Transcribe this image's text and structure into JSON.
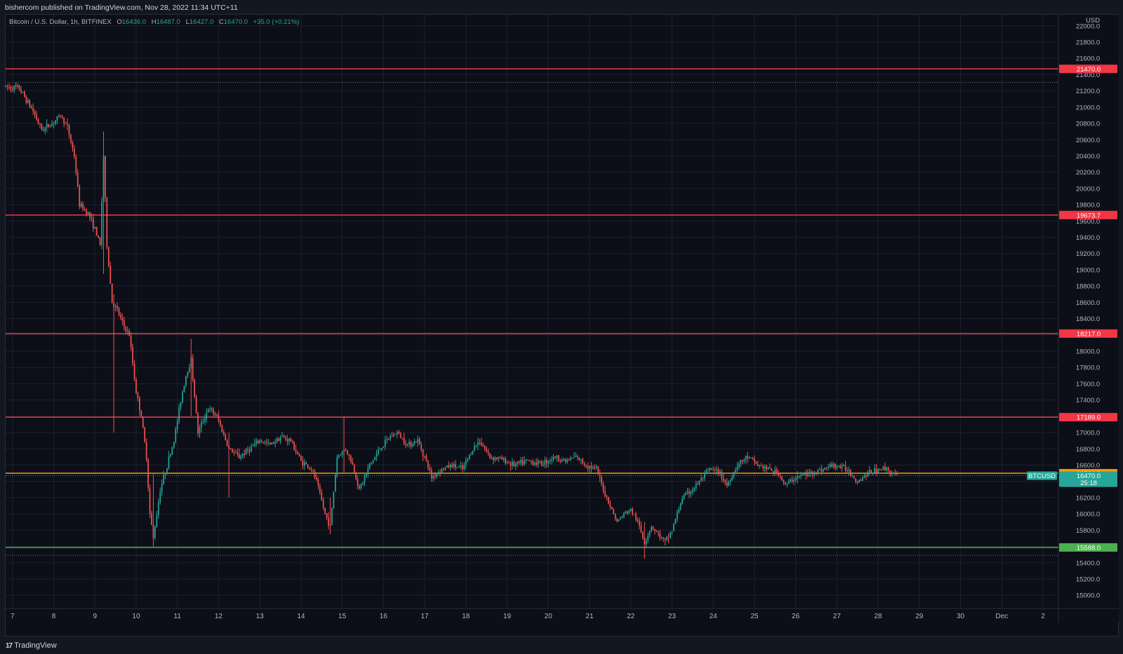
{
  "header": {
    "published": "bishercom published on TradingView.com, Nov 28, 2022 11:34 UTC+11"
  },
  "legend": {
    "symbol": "Bitcoin / U.S. Dollar, 1h, BITFINEX",
    "open_label": "O",
    "open": "16436.0",
    "high_label": "H",
    "high": "16487.0",
    "low_label": "L",
    "low": "16427.0",
    "close_label": "C",
    "close": "16470.0",
    "change": "+35.0 (+0.21%)"
  },
  "axis": {
    "currency": "USD"
  },
  "footer": {
    "brand": "TradingView",
    "brand_mark": "17"
  },
  "colors": {
    "background": "#0c0f18",
    "grid": "#1c2030",
    "up": "#26a69a",
    "down": "#ef5350",
    "resistance": "#f23645",
    "support": "#4caf50",
    "orange": "#ff9800",
    "dotted": "#787b86"
  },
  "chart_data": {
    "type": "candlestick",
    "title": "Bitcoin / U.S. Dollar, 1h, BITFINEX",
    "ylabel": "USD",
    "ylim": [
      14838,
      22136
    ],
    "xlim": [
      "2022-11-06T20:00",
      "2022-12-02T09:00"
    ],
    "yticks": [
      15000,
      15200,
      15400,
      15600,
      15800,
      16000,
      16200,
      16400,
      16600,
      16800,
      17000,
      17200,
      17400,
      17600,
      17800,
      18000,
      18200,
      18400,
      18600,
      18800,
      19000,
      19200,
      19400,
      19600,
      19800,
      20000,
      20200,
      20400,
      20600,
      20800,
      21000,
      21200,
      21400,
      21600,
      21800,
      22000
    ],
    "xticks": [
      {
        "label": "7",
        "time": "2022-11-07"
      },
      {
        "label": "8",
        "time": "2022-11-08"
      },
      {
        "label": "9",
        "time": "2022-11-09"
      },
      {
        "label": "10",
        "time": "2022-11-10"
      },
      {
        "label": "11",
        "time": "2022-11-11"
      },
      {
        "label": "12",
        "time": "2022-11-12"
      },
      {
        "label": "13",
        "time": "2022-11-13"
      },
      {
        "label": "14",
        "time": "2022-11-14"
      },
      {
        "label": "15",
        "time": "2022-11-15"
      },
      {
        "label": "16",
        "time": "2022-11-16"
      },
      {
        "label": "17",
        "time": "2022-11-17"
      },
      {
        "label": "18",
        "time": "2022-11-18"
      },
      {
        "label": "19",
        "time": "2022-11-19"
      },
      {
        "label": "20",
        "time": "2022-11-20"
      },
      {
        "label": "21",
        "time": "2022-11-21"
      },
      {
        "label": "22",
        "time": "2022-11-22"
      },
      {
        "label": "23",
        "time": "2022-11-23"
      },
      {
        "label": "24",
        "time": "2022-11-24"
      },
      {
        "label": "25",
        "time": "2022-11-25"
      },
      {
        "label": "26",
        "time": "2022-11-26"
      },
      {
        "label": "27",
        "time": "2022-11-27"
      },
      {
        "label": "28",
        "time": "2022-11-28"
      },
      {
        "label": "29",
        "time": "2022-11-29"
      },
      {
        "label": "30",
        "time": "2022-11-30"
      },
      {
        "label": "Dec",
        "time": "2022-12-01"
      },
      {
        "label": "2",
        "time": "2022-12-02"
      }
    ],
    "price_levels": [
      {
        "value": 21470.0,
        "label": "21470.0",
        "color": "#f23645"
      },
      {
        "value": 19673.7,
        "label": "19673.7",
        "color": "#f23645"
      },
      {
        "value": 18217.0,
        "label": "18217.0",
        "color": "#f23645"
      },
      {
        "value": 17189.0,
        "label": "17189.0",
        "color": "#f23645"
      },
      {
        "value": 16500.0,
        "label": "16500.0",
        "color": "#ff9800"
      },
      {
        "value": 15588.0,
        "label": "15588.0",
        "color": "#4caf50"
      }
    ],
    "dotted_levels": [
      21305,
      15490
    ],
    "current_price": {
      "symbol": "BTCUSD",
      "value": 16470.0,
      "label": "16470.0",
      "countdown": "25:18",
      "color": "#26a69a"
    },
    "series": [
      {
        "close_path": [
          [
            "2022-11-06T20:00",
            21250
          ],
          [
            "2022-11-07T04:00",
            21230
          ],
          [
            "2022-11-07T12:00",
            20950
          ],
          [
            "2022-11-07T17:00",
            20720
          ],
          [
            "2022-11-07T23:00",
            20800
          ],
          [
            "2022-11-08T04:00",
            20900
          ],
          [
            "2022-11-08T08:00",
            20750
          ],
          [
            "2022-11-08T12:00",
            20400
          ],
          [
            "2022-11-08T15:00",
            19800
          ],
          [
            "2022-11-08T20:00",
            19700
          ],
          [
            "2022-11-09T00:00",
            19500
          ],
          [
            "2022-11-09T03:00",
            19300
          ],
          [
            "2022-11-09T05:00",
            20400
          ],
          [
            "2022-11-09T07:00",
            19300
          ],
          [
            "2022-11-09T10:00",
            18600
          ],
          [
            "2022-11-09T13:00",
            18500
          ],
          [
            "2022-11-09T17:00",
            18300
          ],
          [
            "2022-11-09T20:00",
            18200
          ],
          [
            "2022-11-10T00:00",
            17500
          ],
          [
            "2022-11-10T03:00",
            17200
          ],
          [
            "2022-11-10T06:00",
            16700
          ],
          [
            "2022-11-10T08:00",
            16000
          ],
          [
            "2022-11-10T10:00",
            15700
          ],
          [
            "2022-11-10T14:00",
            16300
          ],
          [
            "2022-11-10T18:00",
            16600
          ],
          [
            "2022-11-10T22:00",
            16900
          ],
          [
            "2022-11-11T02:00",
            17400
          ],
          [
            "2022-11-11T05:00",
            17700
          ],
          [
            "2022-11-11T08:00",
            17900
          ],
          [
            "2022-11-11T12:00",
            17000
          ],
          [
            "2022-11-11T18:00",
            17300
          ],
          [
            "2022-11-11T23:00",
            17200
          ],
          [
            "2022-11-12T06:00",
            16800
          ],
          [
            "2022-11-12T12:00",
            16700
          ],
          [
            "2022-11-12T18:00",
            16800
          ],
          [
            "2022-11-13T00:00",
            16900
          ],
          [
            "2022-11-13T06:00",
            16850
          ],
          [
            "2022-11-13T12:00",
            16950
          ],
          [
            "2022-11-13T18:00",
            16900
          ],
          [
            "2022-11-14T00:00",
            16650
          ],
          [
            "2022-11-14T06:00",
            16550
          ],
          [
            "2022-11-14T09:00",
            16400
          ],
          [
            "2022-11-14T14:00",
            16000
          ],
          [
            "2022-11-14T17:00",
            15850
          ],
          [
            "2022-11-14T21:00",
            16700
          ],
          [
            "2022-11-15T02:00",
            16800
          ],
          [
            "2022-11-15T06:00",
            16600
          ],
          [
            "2022-11-15T10:00",
            16300
          ],
          [
            "2022-11-15T16:00",
            16600
          ],
          [
            "2022-11-15T22:00",
            16800
          ],
          [
            "2022-11-16T04:00",
            16950
          ],
          [
            "2022-11-16T08:00",
            17000
          ],
          [
            "2022-11-16T14:00",
            16850
          ],
          [
            "2022-11-16T20:00",
            16900
          ],
          [
            "2022-11-17T00:00",
            16700
          ],
          [
            "2022-11-17T04:00",
            16450
          ],
          [
            "2022-11-17T10:00",
            16550
          ],
          [
            "2022-11-17T16:00",
            16600
          ],
          [
            "2022-11-17T22:00",
            16550
          ],
          [
            "2022-11-18T04:00",
            16800
          ],
          [
            "2022-11-18T08:00",
            16900
          ],
          [
            "2022-11-18T14:00",
            16700
          ],
          [
            "2022-11-18T20:00",
            16680
          ],
          [
            "2022-11-19T04:00",
            16600
          ],
          [
            "2022-11-19T12:00",
            16650
          ],
          [
            "2022-11-19T20:00",
            16620
          ],
          [
            "2022-11-20T04:00",
            16700
          ],
          [
            "2022-11-20T10:00",
            16650
          ],
          [
            "2022-11-20T16:00",
            16700
          ],
          [
            "2022-11-20T22:00",
            16600
          ],
          [
            "2022-11-21T04:00",
            16550
          ],
          [
            "2022-11-21T08:00",
            16300
          ],
          [
            "2022-11-21T12:00",
            16100
          ],
          [
            "2022-11-21T16:00",
            15900
          ],
          [
            "2022-11-21T20:00",
            16000
          ],
          [
            "2022-11-22T00:00",
            16050
          ],
          [
            "2022-11-22T04:00",
            15900
          ],
          [
            "2022-11-22T08:00",
            15650
          ],
          [
            "2022-11-22T12:00",
            15850
          ],
          [
            "2022-11-22T16:00",
            15750
          ],
          [
            "2022-11-22T20:00",
            15650
          ],
          [
            "2022-11-23T00:00",
            15800
          ],
          [
            "2022-11-23T06:00",
            16200
          ],
          [
            "2022-11-23T12:00",
            16300
          ],
          [
            "2022-11-23T16:00",
            16400
          ],
          [
            "2022-11-23T22:00",
            16550
          ],
          [
            "2022-11-24T04:00",
            16500
          ],
          [
            "2022-11-24T08:00",
            16350
          ],
          [
            "2022-11-24T14:00",
            16600
          ],
          [
            "2022-11-24T20:00",
            16700
          ],
          [
            "2022-11-25T02:00",
            16600
          ],
          [
            "2022-11-25T08:00",
            16550
          ],
          [
            "2022-11-25T14:00",
            16500
          ],
          [
            "2022-11-25T18:00",
            16350
          ],
          [
            "2022-11-26T00:00",
            16450
          ],
          [
            "2022-11-26T08:00",
            16500
          ],
          [
            "2022-11-26T16:00",
            16550
          ],
          [
            "2022-11-26T22:00",
            16600
          ],
          [
            "2022-11-27T06:00",
            16550
          ],
          [
            "2022-11-27T12:00",
            16400
          ],
          [
            "2022-11-27T18:00",
            16500
          ],
          [
            "2022-11-28T00:00",
            16550
          ],
          [
            "2022-11-28T05:00",
            16560
          ],
          [
            "2022-11-28T08:00",
            16500
          ],
          [
            "2022-11-28T11:00",
            16470
          ]
        ],
        "wick_spikes": [
          [
            "2022-11-09T05:00",
            18950,
            20700
          ],
          [
            "2022-11-09T11:00",
            17000,
            18700
          ],
          [
            "2022-11-10T10:00",
            15600,
            16500
          ],
          [
            "2022-11-11T08:00",
            17200,
            18150
          ],
          [
            "2022-11-12T06:00",
            16200,
            17000
          ],
          [
            "2022-11-14T17:00",
            15750,
            16200
          ],
          [
            "2022-11-15T01:00",
            16500,
            17200
          ],
          [
            "2022-11-22T08:00",
            15450,
            15900
          ]
        ]
      }
    ]
  }
}
